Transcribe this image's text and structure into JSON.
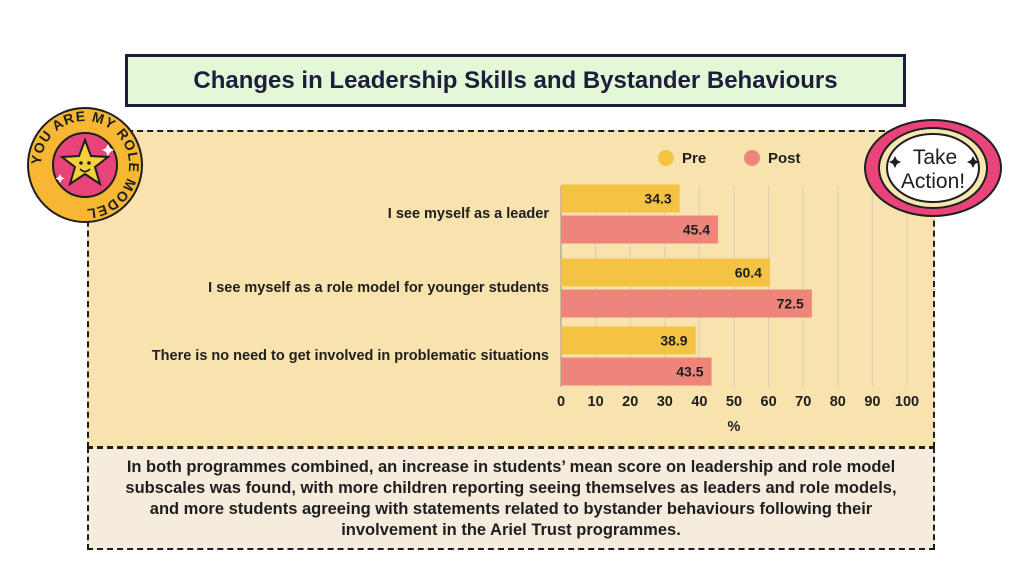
{
  "title": "Changes in Leadership Skills and Bystander Behaviours",
  "badges": {
    "left_text": "YOU ARE MY ROLE MODEL",
    "right_text_line1": "Take",
    "right_text_line2": "Action!"
  },
  "note": "In both programmes combined, an increase in students’ mean score on leadership and role model subscales was found, with more children reporting seeing themselves as leaders and role models, and more students agreeing with statements related to bystander behaviours following their involvement in the Ariel Trust programmes.",
  "colors": {
    "pre": "#f5c343",
    "post": "#ee857b",
    "chart_bg": "#f8e2ae",
    "title_bg": "#e4f7d6"
  },
  "chart_data": {
    "type": "bar",
    "orientation": "horizontal",
    "categories": [
      "I see myself as a leader",
      "I see myself as a role model for younger students",
      "There is no need to get involved in problematic situations"
    ],
    "series": [
      {
        "name": "Pre",
        "values": [
          34.3,
          60.4,
          38.9
        ]
      },
      {
        "name": "Post",
        "values": [
          45.4,
          72.5,
          43.5
        ]
      }
    ],
    "xlabel": "%",
    "xlim": [
      0,
      100
    ],
    "xticks": [
      0,
      10,
      20,
      30,
      40,
      50,
      60,
      70,
      80,
      90,
      100
    ],
    "grid": true,
    "legend": "top-right"
  }
}
